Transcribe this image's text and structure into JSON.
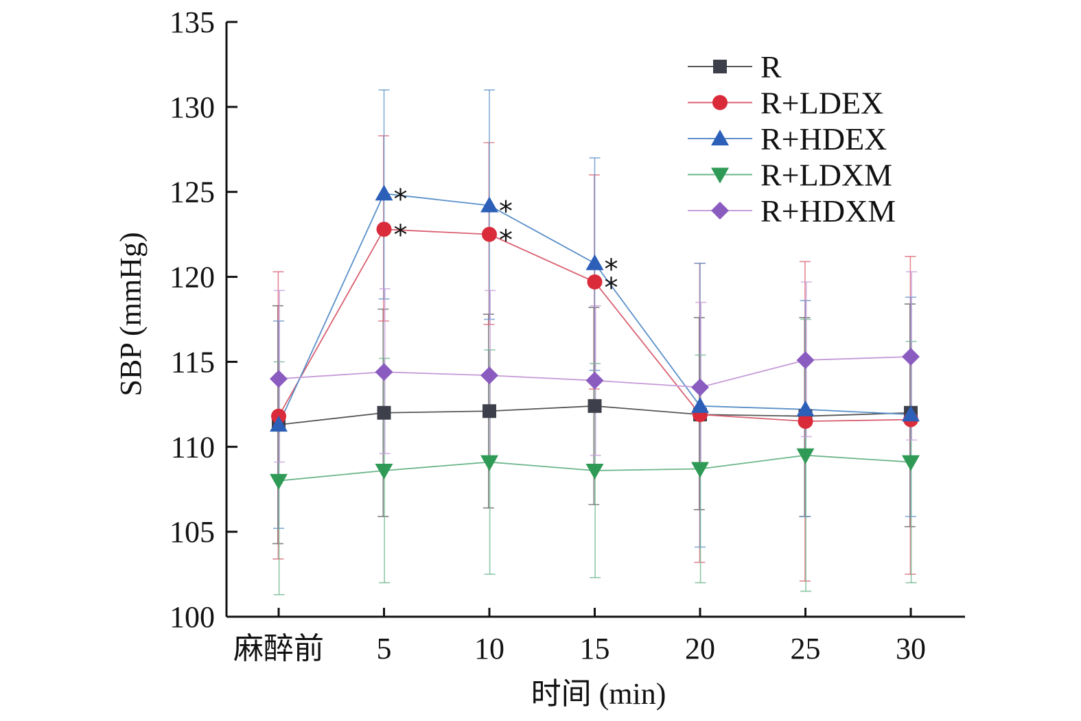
{
  "chart_data": {
    "type": "line",
    "title": "",
    "xlabel": "时间 (min)",
    "ylabel": "SBP (mmHg)",
    "categories": [
      "麻醉前",
      "5",
      "10",
      "15",
      "20",
      "25",
      "30"
    ],
    "ylim": [
      100,
      135
    ],
    "yticks": [
      100,
      105,
      110,
      115,
      120,
      125,
      130,
      135
    ],
    "ytick_labels": [
      "100",
      "105",
      "110",
      "115",
      "120",
      "125",
      "130",
      "135"
    ],
    "grid": false,
    "legend_position": "top-right",
    "series": [
      {
        "name": "R",
        "marker": "square",
        "color": "#3d3f4a",
        "line_color": "#555555",
        "values": [
          111.3,
          112.0,
          112.1,
          112.4,
          111.9,
          111.8,
          112.0
        ],
        "err_low": [
          104.3,
          105.9,
          106.4,
          106.6,
          106.3,
          105.9,
          105.3
        ],
        "err_high": [
          118.3,
          118.1,
          117.8,
          118.2,
          117.6,
          117.6,
          118.4
        ]
      },
      {
        "name": "R+LDEX",
        "marker": "circle",
        "color": "#d92b3a",
        "line_color": "#d96070",
        "values": [
          111.8,
          122.8,
          122.5,
          119.7,
          111.9,
          111.5,
          111.6
        ],
        "err_low": [
          103.4,
          117.4,
          117.2,
          113.4,
          103.2,
          102.1,
          102.5
        ],
        "err_high": [
          120.3,
          128.3,
          127.9,
          126.0,
          120.8,
          120.9,
          121.2
        ]
      },
      {
        "name": "R+HDEX",
        "marker": "triangle-up",
        "color": "#2b5fb8",
        "line_color": "#5a8fc8",
        "values": [
          111.3,
          124.9,
          124.2,
          120.8,
          112.4,
          112.2,
          111.9
        ],
        "err_low": [
          105.2,
          118.7,
          117.5,
          114.5,
          104.1,
          105.9,
          105.9
        ],
        "err_high": [
          117.4,
          131.0,
          131.0,
          127.0,
          120.8,
          118.6,
          118.8
        ]
      },
      {
        "name": "R+LDXM",
        "marker": "triangle-down",
        "color": "#2f9a55",
        "line_color": "#6ab58a",
        "values": [
          108.0,
          108.6,
          109.1,
          108.6,
          108.7,
          109.5,
          109.1
        ],
        "err_low": [
          101.3,
          102.0,
          102.5,
          102.3,
          102.0,
          101.5,
          102.0
        ],
        "err_high": [
          115.0,
          115.2,
          115.7,
          114.9,
          115.4,
          117.5,
          116.2
        ]
      },
      {
        "name": "R+HDXM",
        "marker": "diamond",
        "color": "#8a5cc0",
        "line_color": "#c59ad8",
        "values": [
          114.0,
          114.4,
          114.2,
          113.9,
          113.5,
          115.1,
          115.3
        ],
        "err_low": [
          109.1,
          109.6,
          109.2,
          109.5,
          108.9,
          110.6,
          110.4
        ],
        "err_high": [
          119.2,
          119.3,
          119.2,
          118.3,
          118.5,
          119.7,
          120.3
        ]
      }
    ],
    "annotations": [
      {
        "text": "*",
        "series": "R+LDEX",
        "categories": [
          "5",
          "10",
          "15"
        ]
      },
      {
        "text": "*",
        "series": "R+HDEX",
        "categories": [
          "5",
          "10",
          "15"
        ]
      }
    ]
  }
}
